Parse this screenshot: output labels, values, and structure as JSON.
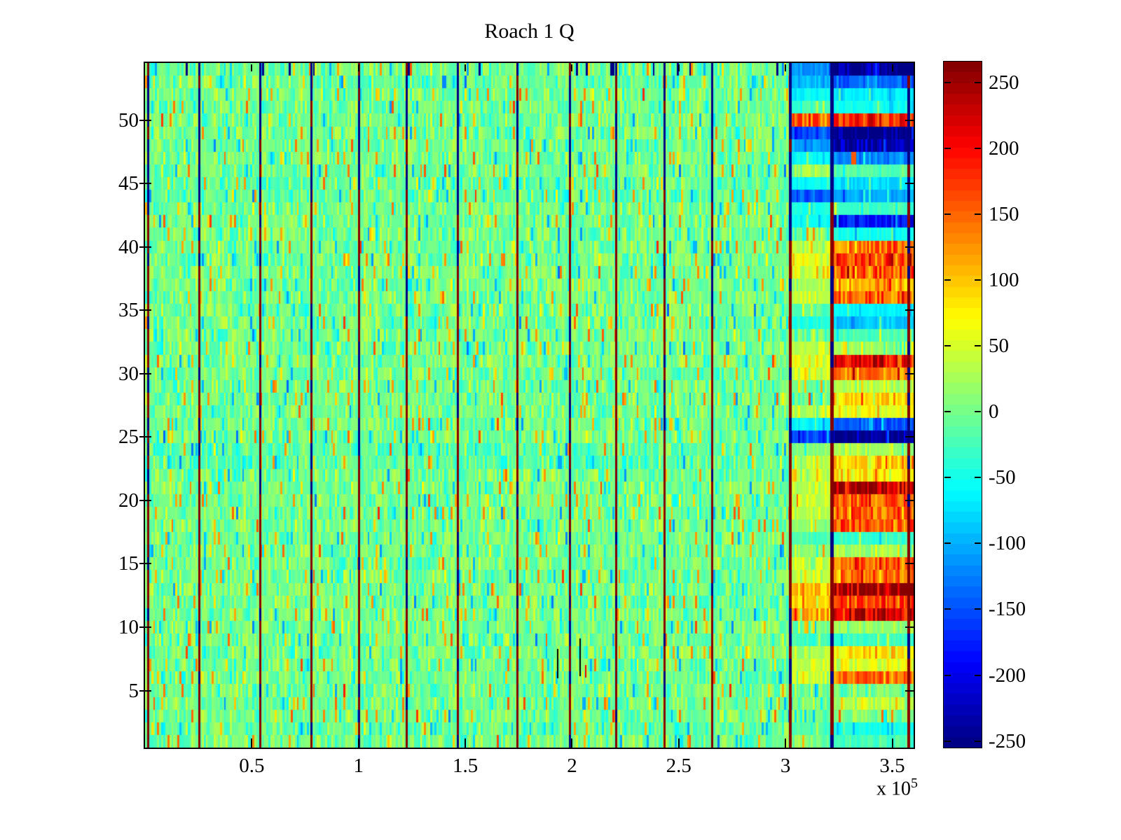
{
  "figure": {
    "background": "#ffffff"
  },
  "chart_data": {
    "type": "heatmap",
    "title": "Roach 1 Q",
    "x_range_e5": [
      0,
      3.6
    ],
    "x_tick_labels": [
      "0.5",
      "1",
      "1.5",
      "2",
      "2.5",
      "3",
      "3.5"
    ],
    "x_tick_values_e5": [
      0.5,
      1,
      1.5,
      2,
      2.5,
      3,
      3.5
    ],
    "x_exponent_base": "x 10",
    "x_exponent_power": "5",
    "y_range": [
      0.5,
      54.5
    ],
    "n_rows": 54,
    "y_tick_labels": [
      "5",
      "10",
      "15",
      "20",
      "25",
      "30",
      "35",
      "40",
      "45",
      "50"
    ],
    "y_tick_values": [
      5,
      10,
      15,
      20,
      25,
      30,
      35,
      40,
      45,
      50
    ],
    "colormap": "jet",
    "n_colors": 64,
    "clim": [
      -255,
      266
    ],
    "colorbar_tick_labels": [
      "250",
      "200",
      "150",
      "100",
      "50",
      "0",
      "-50",
      "-100",
      "-150",
      "-200",
      "-250"
    ],
    "colorbar_tick_values": [
      250,
      200,
      150,
      100,
      50,
      0,
      -50,
      -100,
      -150,
      -200,
      -250
    ],
    "noise": {
      "seed": 7,
      "n_cols": 380,
      "sd": 55,
      "spike_prob": 0.1,
      "spike_base": 50,
      "spike_var": 90,
      "top_row_navy_prob": 0.05
    },
    "row_tint": {
      "2": -8,
      "23": -12,
      "24": -12,
      "44": -10,
      "45": -8,
      "53": -8
    },
    "zones": {
      "a_start_e5": 3.02,
      "b_start_e5": 3.21,
      "end_e5": 3.6,
      "noise_blend": 0.5,
      "band_var": 0.45,
      "min_band": 15
    },
    "row_bands": [
      {
        "row": 54,
        "a": -110,
        "b": -235
      },
      {
        "row": 53,
        "a": -90,
        "b": -135
      },
      {
        "row": 52,
        "a": -55,
        "b": -65
      },
      {
        "row": 51,
        "a": -25,
        "b": -50
      },
      {
        "row": 50,
        "a": 150,
        "b": 175
      },
      {
        "row": 49,
        "a": -150,
        "b": -240
      },
      {
        "row": 48,
        "a": -105,
        "b": -225
      },
      {
        "row": 47,
        "a": -60,
        "b": -115
      },
      {
        "row": 46,
        "a": 25,
        "b": -15
      },
      {
        "row": 45,
        "a": -55,
        "b": -70
      },
      {
        "row": 44,
        "a": -135,
        "b": -95
      },
      {
        "row": 43,
        "a": -45,
        "b": -25
      },
      {
        "row": 42,
        "a": -55,
        "b": -175
      },
      {
        "row": 41,
        "a": -5,
        "b": -50
      },
      {
        "row": 40,
        "a": 40,
        "b": 140
      },
      {
        "row": 39,
        "a": 55,
        "b": 170
      },
      {
        "row": 38,
        "a": 45,
        "b": 150
      },
      {
        "row": 37,
        "a": 30,
        "b": 115
      },
      {
        "row": 36,
        "a": 40,
        "b": 145
      },
      {
        "row": 35,
        "a": -15,
        "b": -60
      },
      {
        "row": 34,
        "a": -45,
        "b": -85
      },
      {
        "row": 33,
        "a": 0,
        "b": -20
      },
      {
        "row": 32,
        "a": 35,
        "b": 20
      },
      {
        "row": 31,
        "a": 55,
        "b": 195
      },
      {
        "row": 30,
        "a": 50,
        "b": 130
      },
      {
        "row": 29,
        "a": 5,
        "b": 30
      },
      {
        "row": 28,
        "a": 10,
        "b": 90
      },
      {
        "row": 27,
        "a": 40,
        "b": 60
      },
      {
        "row": 26,
        "a": -60,
        "b": -140
      },
      {
        "row": 25,
        "a": -150,
        "b": -235
      },
      {
        "row": 24,
        "a": 15,
        "b": 30
      },
      {
        "row": 23,
        "a": 35,
        "b": 110
      },
      {
        "row": 22,
        "a": 50,
        "b": 80
      },
      {
        "row": 21,
        "a": 40,
        "b": 225
      },
      {
        "row": 20,
        "a": 45,
        "b": 160
      },
      {
        "row": 19,
        "a": 40,
        "b": 135
      },
      {
        "row": 18,
        "a": 15,
        "b": 150
      },
      {
        "row": 17,
        "a": -20,
        "b": -30
      },
      {
        "row": 16,
        "a": 0,
        "b": 25
      },
      {
        "row": 15,
        "a": 35,
        "b": 150
      },
      {
        "row": 14,
        "a": 35,
        "b": 140
      },
      {
        "row": 13,
        "a": 95,
        "b": 235
      },
      {
        "row": 12,
        "a": 85,
        "b": 160
      },
      {
        "row": 11,
        "a": 100,
        "b": 205
      },
      {
        "row": 10,
        "a": 0,
        "b": 15
      },
      {
        "row": 9,
        "a": -25,
        "b": -30
      },
      {
        "row": 8,
        "a": 35,
        "b": 85
      },
      {
        "row": 7,
        "a": 40,
        "b": 60
      },
      {
        "row": 6,
        "a": 40,
        "b": 130
      },
      {
        "row": 5,
        "a": 0,
        "b": 5
      },
      {
        "row": 4,
        "a": 5,
        "b": 30
      },
      {
        "row": 3,
        "a": 0,
        "b": -10
      },
      {
        "row": 2,
        "a": -15,
        "b": -45
      },
      {
        "row": 1,
        "a": 0,
        "b": -20
      }
    ],
    "spots": [
      {
        "x_e5": 3.318,
        "row": 47,
        "value": 155,
        "w_e5": 0.022
      },
      {
        "x_e5": 2.064,
        "row": 6.5,
        "value": 215,
        "w_e5": 0.008
      }
    ],
    "black_marks": [
      {
        "x_e5": 1.93,
        "row_top": 8.3,
        "row_bot": 6.0
      },
      {
        "x_e5": 2.035,
        "row_top": 9.1,
        "row_bot": 6.1
      }
    ],
    "event_lines": [
      {
        "x_e5": 0.016,
        "w": 3
      },
      {
        "x_e5": 0.253,
        "w": 3
      },
      {
        "x_e5": 0.541,
        "w": 3
      },
      {
        "x_e5": 0.781,
        "w": 3
      },
      {
        "x_e5": 1.004,
        "w": 3
      },
      {
        "x_e5": 1.227,
        "w": 3
      },
      {
        "x_e5": 1.464,
        "w": 3
      },
      {
        "x_e5": 1.743,
        "w": 3
      },
      {
        "x_e5": 1.989,
        "w": 3
      },
      {
        "x_e5": 2.208,
        "w": 3
      },
      {
        "x_e5": 2.432,
        "w": 3
      },
      {
        "x_e5": 2.658,
        "w": 3
      },
      {
        "x_e5": 3.023,
        "w": 4,
        "navy_above": 40.5
      },
      {
        "x_e5": 3.219,
        "w": 5
      },
      {
        "x_e5": 3.577,
        "w": 4
      }
    ],
    "event_line_style": {
      "red_value": 262,
      "navy_value": -252,
      "navy_above_default": 43.5,
      "flip_prob": 0.2
    }
  }
}
